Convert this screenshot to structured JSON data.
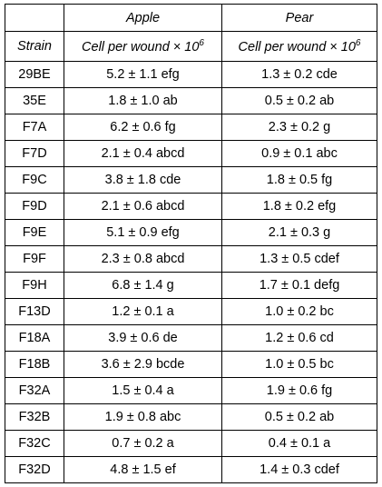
{
  "table": {
    "group_headers": [
      "Apple",
      "Pear"
    ],
    "column_headers": [
      "Strain",
      {
        "text": "Cell per wound × 10",
        "sup": "6"
      },
      {
        "text": "Cell per wound × 10",
        "sup": "6"
      }
    ],
    "rows": [
      [
        "29BE",
        "5.2 ± 1.1 efg",
        "1.3 ± 0.2 cde"
      ],
      [
        "35E",
        "1.8 ± 1.0 ab",
        "0.5 ± 0.2 ab"
      ],
      [
        "F7A",
        "6.2 ± 0.6 fg",
        "2.3 ± 0.2 g"
      ],
      [
        "F7D",
        "2.1 ± 0.4 abcd",
        "0.9 ± 0.1 abc"
      ],
      [
        "F9C",
        "3.8 ± 1.8 cde",
        "1.8 ± 0.5 fg"
      ],
      [
        "F9D",
        "2.1 ± 0.6 abcd",
        "1.8 ± 0.2 efg"
      ],
      [
        "F9E",
        "5.1 ± 0.9 efg",
        "2.1 ± 0.3 g"
      ],
      [
        "F9F",
        "2.3 ± 0.8 abcd",
        "1.3 ± 0.5 cdef"
      ],
      [
        "F9H",
        "6.8 ± 1.4 g",
        "1.7 ± 0.1 defg"
      ],
      [
        "F13D",
        "1.2 ± 0.1 a",
        "1.0 ± 0.2 bc"
      ],
      [
        "F18A",
        "3.9 ± 0.6 de",
        "1.2 ± 0.6 cd"
      ],
      [
        "F18B",
        "3.6 ± 2.9 bcde",
        "1.0 ± 0.5 bc"
      ],
      [
        "F32A",
        "1.5 ± 0.4 a",
        "1.9 ± 0.6 fg"
      ],
      [
        "F32B",
        "1.9 ± 0.8 abc",
        "0.5 ± 0.2 ab"
      ],
      [
        "F32C",
        "0.7 ± 0.2 a",
        "0.4 ± 0.1 a"
      ],
      [
        "F32D",
        "4.8 ± 1.5 ef",
        "1.4 ± 0.3 cdef"
      ]
    ]
  }
}
